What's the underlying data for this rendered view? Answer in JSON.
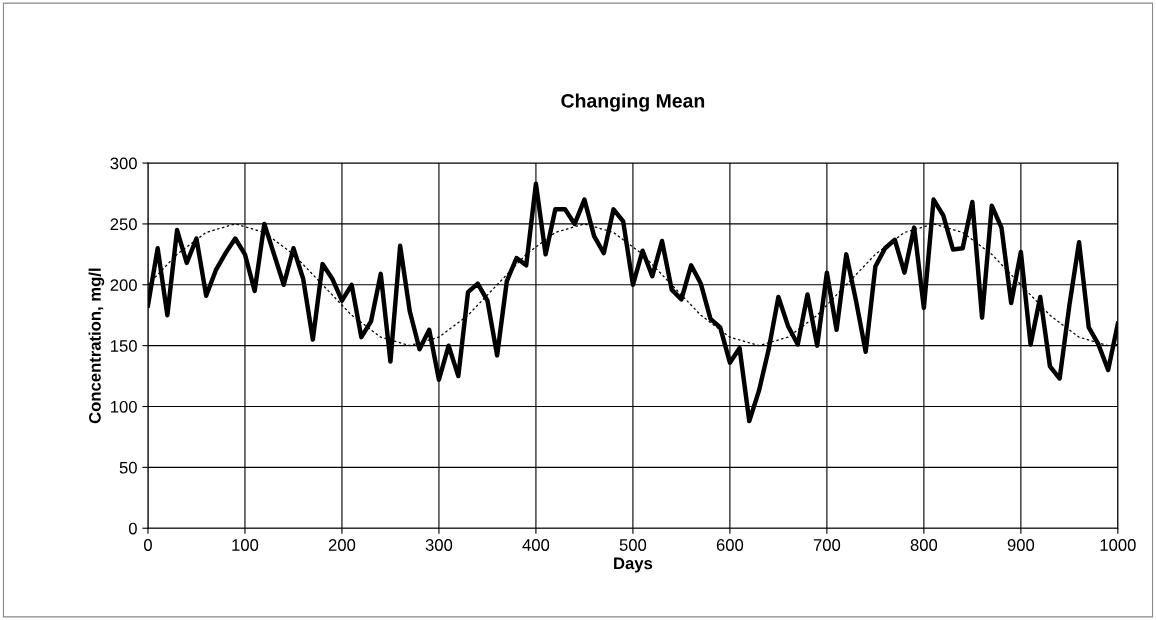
{
  "chart_data": {
    "type": "line",
    "title": "Changing Mean",
    "xlabel": "Days",
    "ylabel": "Concentration, mg/l",
    "xlim": [
      0,
      1000
    ],
    "xticks": [
      0,
      100,
      200,
      300,
      400,
      500,
      600,
      700,
      800,
      900,
      1000
    ],
    "ylim": [
      0,
      300
    ],
    "yticks": [
      0,
      50,
      100,
      150,
      200,
      250,
      300
    ],
    "grid": true,
    "legend": false,
    "series": [
      {
        "color": "#000000",
        "line_style": "solid",
        "x": [
          0,
          10,
          20,
          30,
          40,
          50,
          60,
          70,
          80,
          90,
          100,
          110,
          120,
          130,
          140,
          150,
          160,
          170,
          180,
          190,
          200,
          210,
          220,
          230,
          240,
          250,
          260,
          270,
          280,
          290,
          300,
          310,
          320,
          330,
          340,
          350,
          360,
          370,
          380,
          390,
          400,
          410,
          420,
          430,
          440,
          450,
          460,
          470,
          480,
          490,
          500,
          510,
          520,
          530,
          540,
          550,
          560,
          570,
          580,
          590,
          600,
          610,
          620,
          630,
          640,
          650,
          660,
          670,
          680,
          690,
          700,
          710,
          720,
          730,
          740,
          750,
          760,
          770,
          780,
          790,
          800,
          810,
          820,
          830,
          840,
          850,
          860,
          870,
          880,
          890,
          900,
          910,
          920,
          930,
          940,
          950,
          960,
          970,
          980,
          990,
          1000
        ],
        "values": [
          183,
          230,
          175,
          245,
          218,
          238,
          191,
          212,
          226,
          238,
          225,
          195,
          250,
          225,
          200,
          230,
          205,
          155,
          217,
          205,
          187,
          200,
          157,
          170,
          209,
          137,
          232,
          178,
          147,
          163,
          122,
          150,
          125,
          194,
          201,
          187,
          142,
          203,
          222,
          216,
          283,
          225,
          262,
          262,
          250,
          270,
          240,
          226,
          262,
          252,
          200,
          228,
          207,
          236,
          196,
          188,
          216,
          201,
          172,
          165,
          136,
          148,
          88,
          113,
          147,
          190,
          166,
          151,
          192,
          150,
          210,
          163,
          225,
          187,
          145,
          215,
          230,
          237,
          210,
          247,
          181,
          270,
          257,
          229,
          230,
          268,
          173,
          265,
          247,
          185,
          227,
          151,
          190,
          133,
          123,
          183,
          235,
          165,
          151,
          130,
          168
        ]
      },
      {
        "color": "#000000",
        "line_style": "dotted",
        "x": [
          0,
          30,
          60,
          90,
          120,
          150,
          180,
          210,
          240,
          270,
          300,
          330,
          360,
          390,
          420,
          450,
          480,
          510,
          540,
          570,
          600,
          630,
          660,
          690,
          720,
          750,
          780,
          810,
          840,
          870,
          900,
          930,
          960,
          990,
          1000
        ],
        "values": [
          200,
          225,
          243,
          250,
          243,
          225,
          200,
          175,
          157,
          150,
          157,
          175,
          200,
          225,
          243,
          250,
          243,
          225,
          200,
          175,
          157,
          150,
          157,
          175,
          200,
          225,
          243,
          250,
          243,
          225,
          200,
          175,
          157,
          150,
          151
        ]
      }
    ]
  }
}
